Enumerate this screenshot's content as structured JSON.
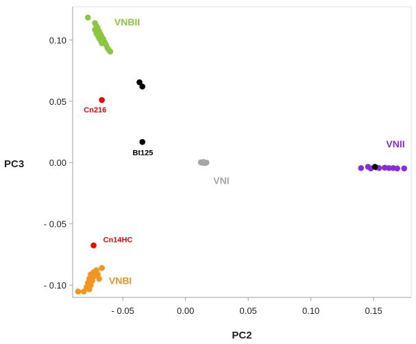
{
  "chart_data": {
    "type": "scatter",
    "xlabel": "PC2",
    "ylabel": "PC3",
    "xlim": [
      -0.09,
      0.18
    ],
    "ylim": [
      -0.11,
      0.127
    ],
    "grid": false,
    "x_ticks": [
      -0.05,
      0.0,
      0.05,
      0.1,
      0.15
    ],
    "x_tick_labels": [
      "- 0.05",
      "0.00",
      "0.05",
      "0.10",
      "0.15"
    ],
    "y_ticks": [
      0.1,
      0.05,
      0.0,
      -0.05,
      -0.1
    ],
    "y_tick_labels": [
      "0.10",
      "0.05",
      "0.00",
      "- 0.05",
      "- 0.10"
    ],
    "series": [
      {
        "name": "VNBII",
        "color": "#8dc63f",
        "points": [
          [
            -0.0778,
            0.1183
          ],
          [
            -0.0722,
            0.1138
          ],
          [
            -0.0711,
            0.1115
          ],
          [
            -0.07,
            0.1098
          ],
          [
            -0.0722,
            0.1083
          ],
          [
            -0.0689,
            0.107
          ],
          [
            -0.0711,
            0.1054
          ],
          [
            -0.0678,
            0.1048
          ],
          [
            -0.07,
            0.1036
          ],
          [
            -0.0667,
            0.1025
          ],
          [
            -0.0689,
            0.1016
          ],
          [
            -0.0656,
            0.1008
          ],
          [
            -0.0678,
            0.0998
          ],
          [
            -0.0644,
            0.0982
          ],
          [
            -0.0667,
            0.0974
          ],
          [
            -0.0633,
            0.0959
          ],
          [
            -0.0622,
            0.0934
          ],
          [
            -0.0611,
            0.0918
          ],
          [
            -0.06,
            0.0905
          ]
        ]
      },
      {
        "name": "VNI",
        "color": "#a6a6a6",
        "points": [
          [
            0.0122,
            0.0002
          ],
          [
            0.0144,
            0.0005
          ],
          [
            0.0156,
            -0.0005
          ],
          [
            0.0167,
            0.0
          ],
          [
            0.0133,
            -0.0002
          ]
        ]
      },
      {
        "name": "VNII",
        "color": "#8a2be2",
        "points": [
          [
            0.14,
            -0.0045
          ],
          [
            0.1456,
            -0.0035
          ],
          [
            0.1478,
            -0.0048
          ],
          [
            0.1522,
            -0.004
          ],
          [
            0.1544,
            -0.0045
          ],
          [
            0.1589,
            -0.0042
          ],
          [
            0.1622,
            -0.0045
          ],
          [
            0.1656,
            -0.0045
          ],
          [
            0.1689,
            -0.0048
          ],
          [
            0.1744,
            -0.0048
          ]
        ]
      },
      {
        "name": "VNBI",
        "color": "#f7941d",
        "points": [
          [
            -0.0667,
            -0.086
          ],
          [
            -0.0711,
            -0.0878
          ],
          [
            -0.0733,
            -0.0895
          ],
          [
            -0.0756,
            -0.0913
          ],
          [
            -0.0733,
            -0.093
          ],
          [
            -0.0767,
            -0.0948
          ],
          [
            -0.0744,
            -0.0965
          ],
          [
            -0.0778,
            -0.0982
          ],
          [
            -0.0756,
            -0.1
          ],
          [
            -0.0789,
            -0.1017
          ],
          [
            -0.0767,
            -0.1034
          ],
          [
            -0.0811,
            -0.1052
          ],
          [
            -0.0856,
            -0.1052
          ],
          [
            -0.07,
            -0.0913
          ],
          [
            -0.0689,
            -0.0948
          ]
        ]
      },
      {
        "name": "",
        "color": "#000000",
        "points": [
          [
            -0.0367,
            0.0655
          ],
          [
            -0.0344,
            0.062
          ],
          [
            -0.0344,
            0.0168
          ],
          [
            0.1511,
            -0.0035
          ]
        ]
      },
      {
        "name": "",
        "color": "#ff0000",
        "points": [
          [
            -0.0667,
            0.051
          ],
          [
            -0.0733,
            -0.0676
          ]
        ]
      }
    ],
    "cluster_labels": [
      {
        "text": "VNBII",
        "color": "#8dc63f",
        "at": [
          -0.0567,
          0.112
        ]
      },
      {
        "text": "VNI",
        "color": "#a6a6a6",
        "at": [
          0.0222,
          -0.0175
        ]
      },
      {
        "text": "VNII",
        "color": "#8a2be2",
        "at": [
          0.16,
          0.0125
        ]
      },
      {
        "text": "VNBI",
        "color": "#f7941d",
        "at": [
          -0.0611,
          -0.099
        ]
      }
    ],
    "sample_labels": [
      {
        "text": "Cn216",
        "color": "#ff0000",
        "at": [
          -0.0811,
          0.041
        ]
      },
      {
        "text": "Bt125",
        "color": "#000000",
        "at": [
          -0.0422,
          0.006
        ]
      },
      {
        "text": "Cn14HC",
        "color": "#ff0000",
        "at": [
          -0.0656,
          -0.065
        ]
      }
    ]
  }
}
